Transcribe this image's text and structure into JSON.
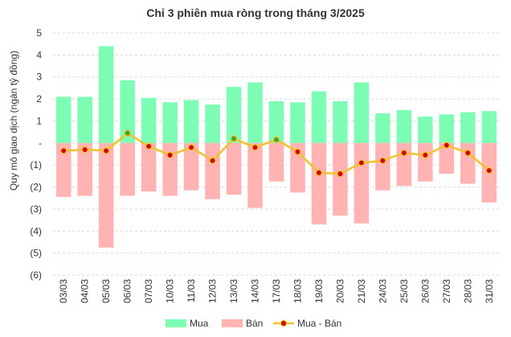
{
  "chart_data": {
    "type": "bar",
    "title": "Chỉ 3 phiên mua ròng trong tháng 3/2025",
    "xlabel": "",
    "ylabel": "Quy mô giao dịch (ngàn tỷ đồng)",
    "ylim": [
      -6,
      5
    ],
    "yticks": [
      "5",
      "4",
      "3",
      "2",
      "1",
      "-",
      "(1)",
      "(2)",
      "(3)",
      "(4)",
      "(5)",
      "(6)"
    ],
    "grid": true,
    "legend_position": "bottom",
    "categories": [
      "03/03",
      "04/03",
      "05/03",
      "06/03",
      "07/03",
      "10/03",
      "11/03",
      "12/03",
      "13/03",
      "14/03",
      "17/03",
      "18/03",
      "19/03",
      "20/03",
      "21/03",
      "24/03",
      "25/03",
      "26/03",
      "27/03",
      "28/03",
      "31/03"
    ],
    "series": [
      {
        "name": "Mua",
        "type": "bar",
        "color": "#7dfcb4",
        "values": [
          2.1,
          2.1,
          4.4,
          2.85,
          2.05,
          1.85,
          1.95,
          1.75,
          2.55,
          2.75,
          1.9,
          1.85,
          2.35,
          1.9,
          2.75,
          1.35,
          1.5,
          1.2,
          1.3,
          1.4,
          1.45
        ]
      },
      {
        "name": "Bán",
        "type": "bar",
        "color": "#ffb3b3",
        "values": [
          -2.45,
          -2.4,
          -4.75,
          -2.4,
          -2.2,
          -2.4,
          -2.15,
          -2.55,
          -2.35,
          -2.95,
          -1.75,
          -2.25,
          -3.7,
          -3.3,
          -3.65,
          -2.15,
          -1.95,
          -1.75,
          -1.4,
          -1.85,
          -2.7
        ]
      },
      {
        "name": "Mua - Bán",
        "type": "line",
        "color": "#f2c12e",
        "marker_color": "#d40000",
        "marker_positive_color": "#3aa832",
        "values": [
          -0.35,
          -0.3,
          -0.35,
          0.45,
          -0.15,
          -0.55,
          -0.2,
          -0.8,
          0.2,
          -0.2,
          0.15,
          -0.4,
          -1.35,
          -1.4,
          -0.9,
          -0.8,
          -0.45,
          -0.55,
          -0.1,
          -0.45,
          -1.25
        ]
      }
    ]
  }
}
